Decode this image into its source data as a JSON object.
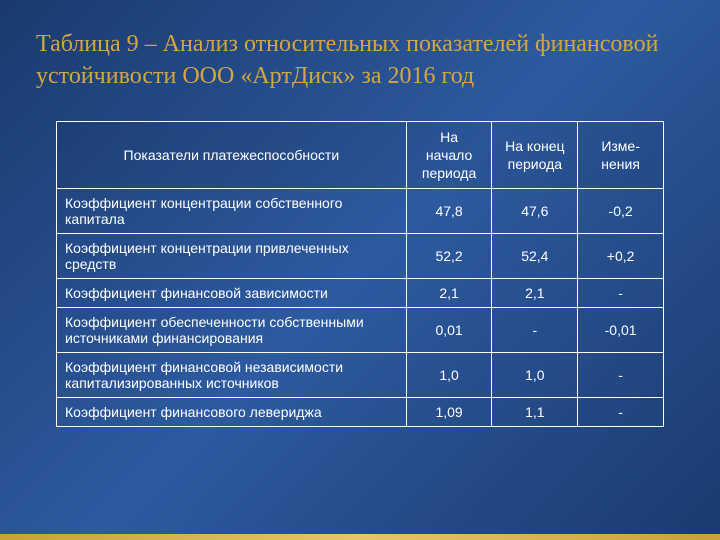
{
  "slide": {
    "title": "Таблица 9 – Анализ относительных показателей финансовой устойчивости ООО «АртДиск» за 2016 год",
    "background_gradient": [
      "#1a3a6e",
      "#2d5aa0",
      "#1a3a6e"
    ],
    "title_color": "#d4a640",
    "title_fontsize": 24,
    "accent_bar_color": "#c9a03a"
  },
  "table": {
    "text_color": "#ffffff",
    "border_color": "#ffffff",
    "font_size": 14,
    "columns": [
      {
        "label": "Показатели платежеспособности",
        "width_pct": 53,
        "align": "left"
      },
      {
        "label": "На начало периода",
        "width_pct": 13,
        "align": "center"
      },
      {
        "label": "На конец периода",
        "width_pct": 13,
        "align": "center"
      },
      {
        "label": "Изме-нения",
        "width_pct": 13,
        "align": "center"
      }
    ],
    "rows": [
      [
        "Коэффициент концентрации собственного капитала",
        "47,8",
        "47,6",
        "-0,2"
      ],
      [
        "Коэффициент концентрации привлеченных средств",
        "52,2",
        "52,4",
        "+0,2"
      ],
      [
        "Коэффициент финансовой зависимости",
        "2,1",
        "2,1",
        "-"
      ],
      [
        "Коэффициент обеспеченности собственными источниками финансирования",
        "0,01",
        "-",
        "-0,01"
      ],
      [
        "Коэффициент финансовой независимости капитализированных источников",
        "1,0",
        "1,0",
        "-"
      ],
      [
        "Коэффициент финансового левериджа",
        "1,09",
        "1,1",
        "-"
      ]
    ]
  }
}
